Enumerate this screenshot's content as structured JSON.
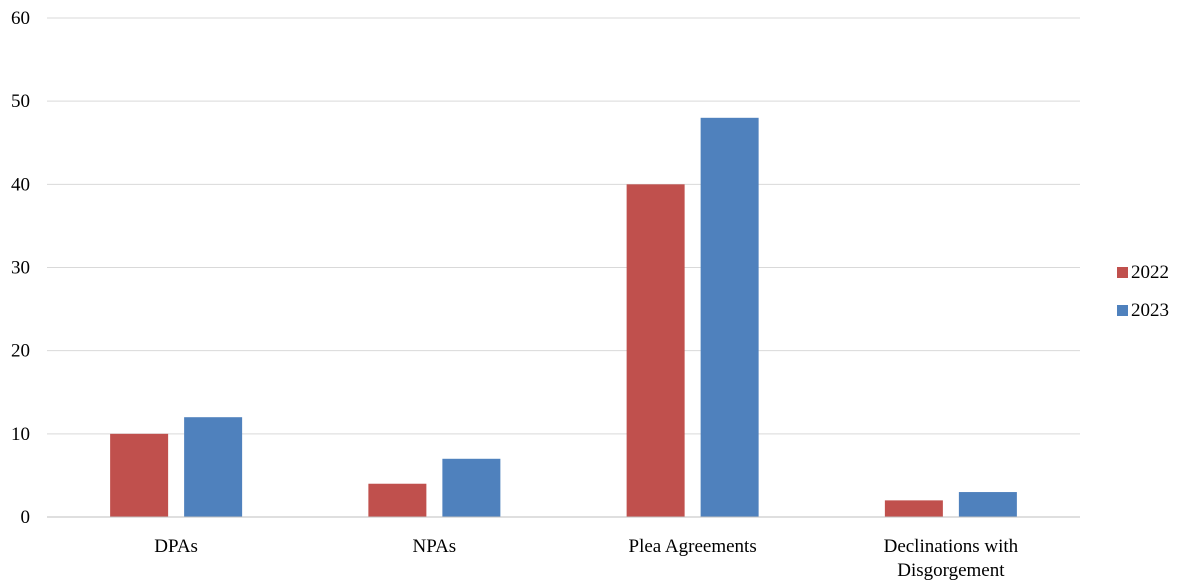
{
  "chart_data": {
    "type": "bar",
    "title": "",
    "xlabel": "",
    "ylabel": "",
    "ylim": [
      0,
      60
    ],
    "yticks": [
      0,
      10,
      20,
      30,
      40,
      50,
      60
    ],
    "grid": true,
    "legend_position": "right",
    "categories": [
      [
        "DPAs"
      ],
      [
        "NPAs"
      ],
      [
        "Plea Agreements"
      ],
      [
        "Declinations with",
        "Disgorgement"
      ]
    ],
    "series": [
      {
        "name": "2022",
        "color": "#C0504D",
        "values": [
          10,
          4,
          40,
          2
        ]
      },
      {
        "name": "2023",
        "color": "#4F81BD",
        "values": [
          12,
          7,
          48,
          3
        ]
      }
    ]
  }
}
